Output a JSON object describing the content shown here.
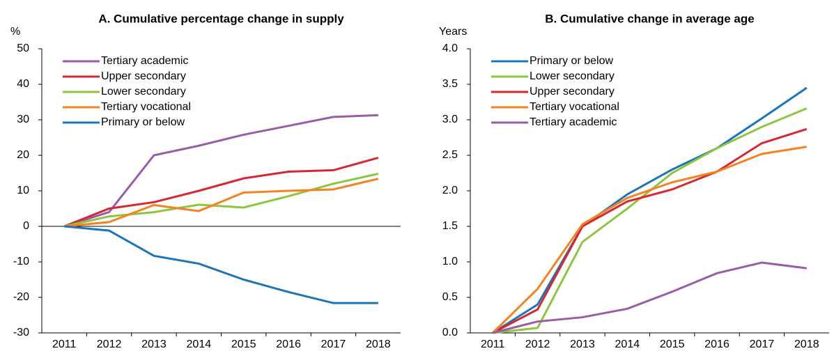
{
  "chart_data": [
    {
      "type": "line",
      "title": "A. Cumulative percentage change in supply",
      "y_label": "%",
      "categories": [
        "2011",
        "2012",
        "2013",
        "2014",
        "2015",
        "2016",
        "2017",
        "2018"
      ],
      "ylim": [
        -30,
        50
      ],
      "yticks": [
        -30,
        -20,
        -10,
        0,
        10,
        20,
        30,
        40,
        50
      ],
      "zero_line": true,
      "series": [
        {
          "name": "Tertiary academic",
          "color": "#9a5ba8",
          "values": [
            0,
            4,
            20,
            22.7,
            25.8,
            28.3,
            30.8,
            31.3
          ]
        },
        {
          "name": "Upper secondary",
          "color": "#d7282f",
          "values": [
            0,
            5,
            6.8,
            10,
            13.5,
            15.4,
            15.8,
            19.3
          ]
        },
        {
          "name": "Lower secondary",
          "color": "#8cc63f",
          "values": [
            0,
            2.8,
            4,
            6.1,
            5.3,
            8.5,
            12,
            14.8
          ]
        },
        {
          "name": "Tertiary vocational",
          "color": "#f58220",
          "values": [
            0,
            1.2,
            6,
            4.3,
            9.5,
            10,
            10.4,
            13.4
          ]
        },
        {
          "name": "Primary or below",
          "color": "#1b75bb",
          "values": [
            0,
            -1.2,
            -8.3,
            -10.5,
            -15,
            -18.5,
            -21.6,
            -21.6
          ]
        }
      ]
    },
    {
      "type": "line",
      "title": "B. Cumulative change in average age",
      "y_label": "Years",
      "categories": [
        "2011",
        "2012",
        "2013",
        "2014",
        "2015",
        "2016",
        "2017",
        "2018"
      ],
      "ylim": [
        0,
        4
      ],
      "yticks": [
        {
          "value": 0,
          "label": "0.0"
        },
        0.5,
        {
          "value": 1,
          "label": "1.0"
        },
        1.5,
        {
          "value": 2,
          "label": "2.0"
        },
        2.5,
        {
          "value": 3,
          "label": "3.0"
        },
        3.5,
        {
          "value": 4,
          "label": "4.0"
        }
      ],
      "zero_line": false,
      "series": [
        {
          "name": "Primary or below",
          "color": "#1b75bb",
          "values": [
            0,
            0.4,
            1.5,
            1.95,
            2.3,
            2.6,
            3.02,
            3.45
          ]
        },
        {
          "name": "Lower secondary",
          "color": "#8cc63f",
          "values": [
            0,
            0.07,
            1.28,
            1.75,
            2.25,
            2.6,
            2.9,
            3.16
          ]
        },
        {
          "name": "Upper secondary",
          "color": "#d7282f",
          "values": [
            0,
            0.33,
            1.5,
            1.85,
            2.02,
            2.27,
            2.67,
            2.87
          ]
        },
        {
          "name": "Tertiary vocational",
          "color": "#f58220",
          "values": [
            0,
            0.62,
            1.53,
            1.9,
            2.12,
            2.27,
            2.52,
            2.62
          ]
        },
        {
          "name": "Tertiary academic",
          "color": "#9a5ba8",
          "values": [
            0,
            0.16,
            0.22,
            0.34,
            0.58,
            0.84,
            0.99,
            0.91
          ]
        }
      ]
    }
  ]
}
